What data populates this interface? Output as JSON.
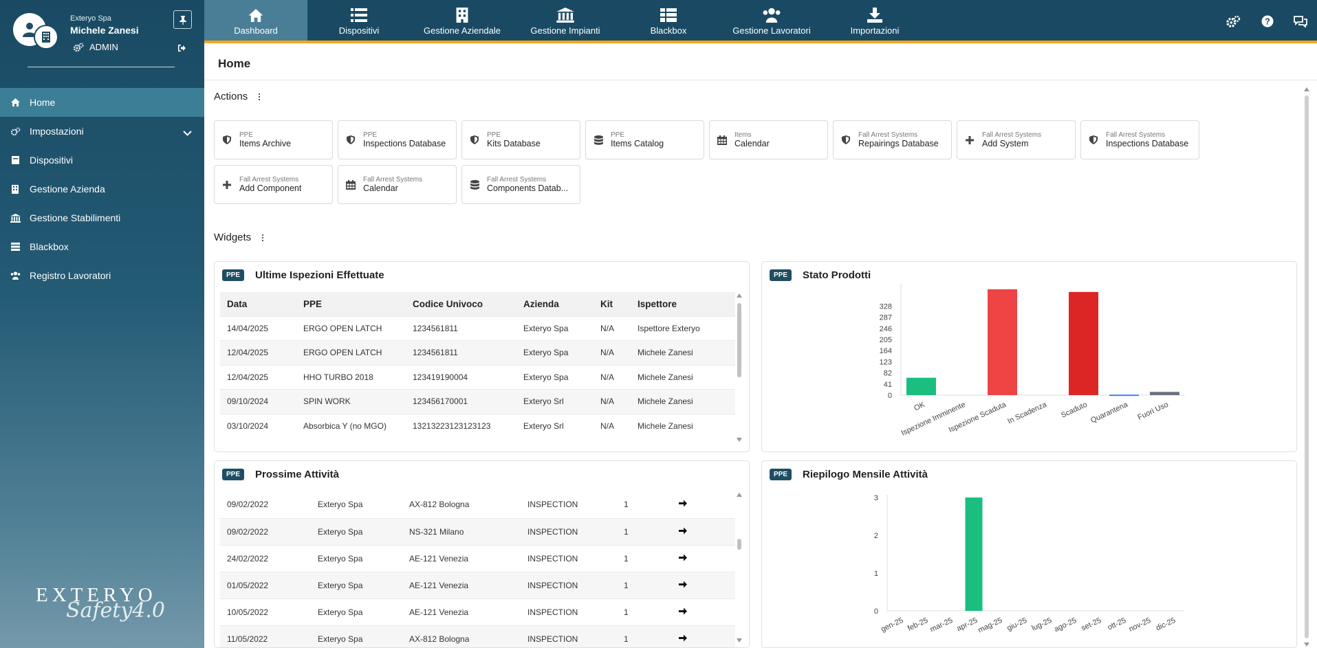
{
  "user": {
    "company": "Exteryo Spa",
    "name": "Michele Zanesi",
    "role": "ADMIN"
  },
  "sidebar": {
    "items": [
      {
        "label": "Home",
        "icon": "home-icon",
        "active": true
      },
      {
        "label": "Impostazioni",
        "icon": "gears-icon",
        "expandable": true
      },
      {
        "label": "Dispositivi",
        "icon": "device-icon"
      },
      {
        "label": "Gestione Azienda",
        "icon": "building-icon"
      },
      {
        "label": "Gestione Stabilimenti",
        "icon": "bank-icon"
      },
      {
        "label": "Blackbox",
        "icon": "list-icon"
      },
      {
        "label": "Registro Lavoratori",
        "icon": "users-icon"
      }
    ],
    "brand": {
      "name": "EXTERYO",
      "tagline": "Safety4.0"
    }
  },
  "topnav": {
    "tabs": [
      {
        "label": "Dashboard",
        "icon": "home-icon",
        "active": true
      },
      {
        "label": "Dispositivi",
        "icon": "list-icon"
      },
      {
        "label": "Gestione Aziendale",
        "icon": "building-icon"
      },
      {
        "label": "Gestione Impianti",
        "icon": "bank-icon"
      },
      {
        "label": "Blackbox",
        "icon": "table-icon"
      },
      {
        "label": "Gestione Lavoratori",
        "icon": "users-icon"
      },
      {
        "label": "Importazioni",
        "icon": "download-icon"
      }
    ],
    "tools": [
      "gears-icon",
      "help-icon",
      "chat-icon"
    ]
  },
  "page": {
    "title": "Home"
  },
  "actions": {
    "title": "Actions",
    "items": [
      {
        "sub": "PPE",
        "label": "Items Archive",
        "icon": "shield-icon"
      },
      {
        "sub": "PPE",
        "label": "Inspections Database",
        "icon": "shield-icon"
      },
      {
        "sub": "PPE",
        "label": "Kits Database",
        "icon": "shield-icon"
      },
      {
        "sub": "PPE",
        "label": "Items Catalog",
        "icon": "database-icon"
      },
      {
        "sub": "Items",
        "label": "Calendar",
        "icon": "calendar-icon"
      },
      {
        "sub": "Fall Arrest Systems",
        "label": "Repairings Database",
        "icon": "shield-icon"
      },
      {
        "sub": "Fall Arrest Systems",
        "label": "Add System",
        "icon": "plus-icon"
      },
      {
        "sub": "Fall Arrest Systems",
        "label": "Inspections Database",
        "icon": "shield-icon"
      },
      {
        "sub": "Fall Arrest Systems",
        "label": "Add Component",
        "icon": "plus-icon"
      },
      {
        "sub": "Fall Arrest Systems",
        "label": "Calendar",
        "icon": "calendar-icon"
      },
      {
        "sub": "Fall Arrest Systems",
        "label": "Components Datab...",
        "icon": "database-icon"
      }
    ]
  },
  "widgets": {
    "title": "Widgets",
    "inspections": {
      "badge": "PPE",
      "title": "Ultime Ispezioni Effettuate",
      "columns": [
        "Data",
        "PPE",
        "Codice Univoco",
        "Azienda",
        "Kit",
        "Ispettore"
      ],
      "rows": [
        [
          "14/04/2025",
          "ERGO OPEN LATCH",
          "1234561811",
          "Exteryo Spa",
          "N/A",
          "Ispettore Exteryo"
        ],
        [
          "12/04/2025",
          "ERGO OPEN LATCH",
          "1234561811",
          "Exteryo Spa",
          "N/A",
          "Michele Zanesi"
        ],
        [
          "12/04/2025",
          "HHO TURBO 2018",
          "123419190004",
          "Exteryo Spa",
          "N/A",
          "Michele Zanesi"
        ],
        [
          "09/10/2024",
          "SPIN WORK",
          "123456170001",
          "Exteryo Srl",
          "N/A",
          "Michele Zanesi"
        ],
        [
          "03/10/2024",
          "Absorbica Y (no MGO)",
          "13213223123123123",
          "Exteryo Srl",
          "N/A",
          "Michele Zanesi"
        ]
      ]
    },
    "products": {
      "badge": "PPE",
      "title": "Stato Prodotti",
      "chart_data": {
        "type": "bar",
        "categories": [
          "OK",
          "Ispezione Imminente",
          "Ispezione Scaduta",
          "In Scadenza",
          "Scaduto",
          "Quarantena",
          "Fuori Uso"
        ],
        "values": [
          64,
          0,
          390,
          0,
          380,
          2,
          12
        ],
        "colors": [
          "#1abf7f",
          "#f0a04b",
          "#ef4444",
          "#f5b84a",
          "#dc2626",
          "#3b82f6",
          "#6b7280"
        ],
        "yticks": [
          0,
          41,
          82,
          123,
          164,
          205,
          246,
          287,
          328
        ],
        "ylim": [
          0,
          400
        ]
      }
    },
    "activities": {
      "badge": "PPE",
      "title": "Prossime Attività",
      "rows": [
        [
          "09/02/2022",
          "Exteryo Spa",
          "AX-812 Bologna",
          "INSPECTION",
          "1"
        ],
        [
          "09/02/2022",
          "Exteryo Spa",
          "NS-321 Milano",
          "INSPECTION",
          "1"
        ],
        [
          "24/02/2022",
          "Exteryo Spa",
          "AE-121 Venezia",
          "INSPECTION",
          "1"
        ],
        [
          "01/05/2022",
          "Exteryo Spa",
          "AE-121 Venezia",
          "INSPECTION",
          "1"
        ],
        [
          "10/05/2022",
          "Exteryo Spa",
          "AE-121 Venezia",
          "INSPECTION",
          "1"
        ],
        [
          "11/05/2022",
          "Exteryo Spa",
          "AX-812 Bologna",
          "INSPECTION",
          "1"
        ]
      ]
    },
    "monthly": {
      "badge": "PPE",
      "title": "Riepilogo Mensile Attività",
      "chart_data": {
        "type": "bar",
        "categories": [
          "gen-25",
          "feb-25",
          "mar-25",
          "apr-25",
          "mag-25",
          "giu-25",
          "lug-25",
          "ago-25",
          "set-25",
          "ott-25",
          "nov-25",
          "dic-25"
        ],
        "values": [
          0,
          0,
          0,
          3,
          0,
          0,
          0,
          0,
          0,
          0,
          0,
          0
        ],
        "color": "#1abf7f",
        "yticks": [
          0,
          1,
          2,
          3
        ],
        "ylim": [
          0,
          3
        ]
      }
    }
  }
}
